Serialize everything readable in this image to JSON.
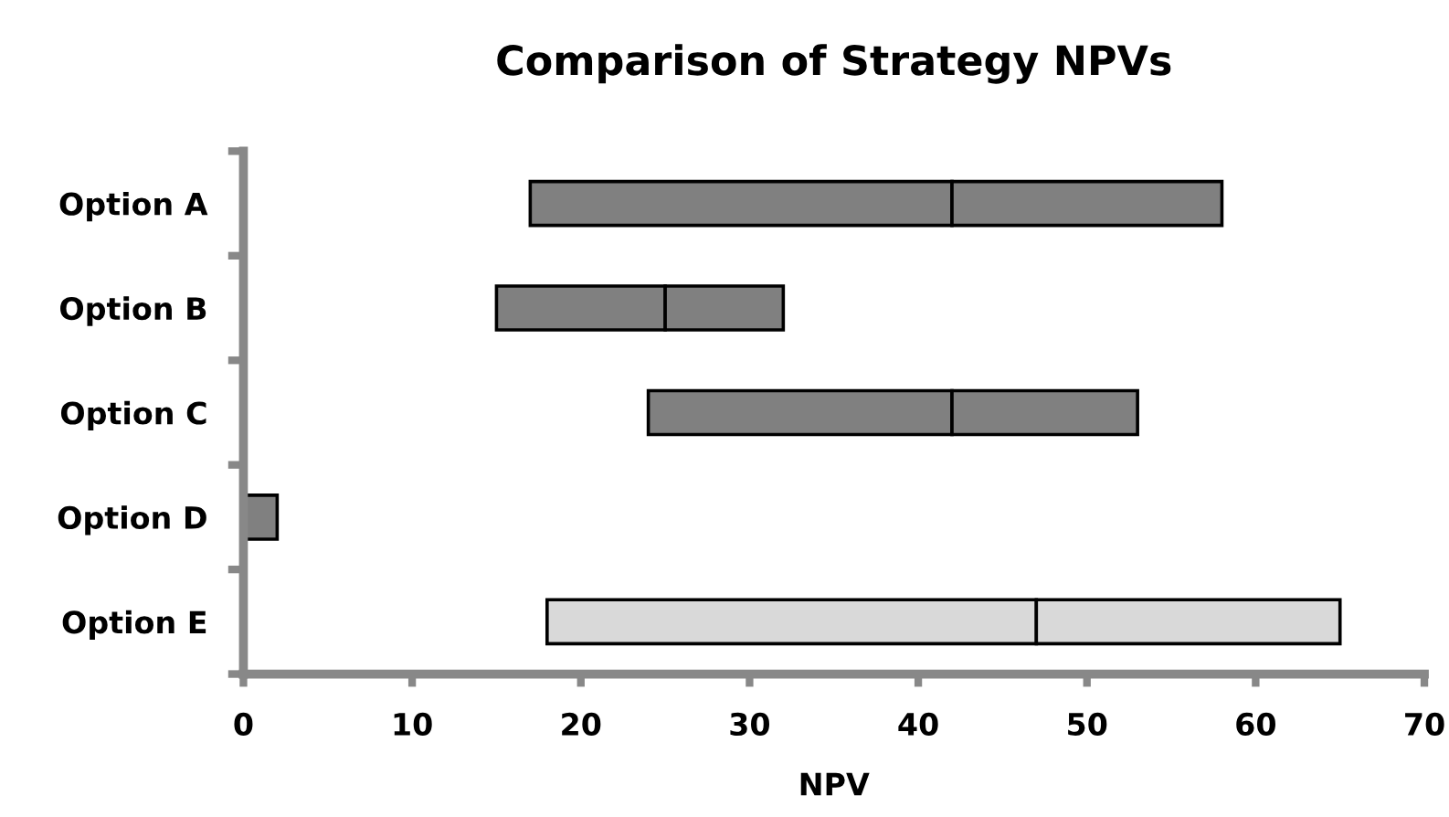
{
  "chart_data": {
    "type": "bar",
    "title": "Comparison of Strategy NPVs",
    "xlabel": "NPV",
    "orientation": "horizontal",
    "categories": [
      "Option A",
      "Option B",
      "Option C",
      "Option D",
      "Option E"
    ],
    "series": [
      {
        "colors": [
          "#808080",
          "#808080",
          "#808080",
          "#808080",
          "#d9d9d9"
        ],
        "base": [
          17,
          15,
          24,
          0,
          18
        ],
        "values": [
          25,
          10,
          18,
          2,
          29
        ]
      },
      {
        "colors": [
          "#808080",
          "#808080",
          "#808080",
          "#808080",
          "#d9d9d9"
        ],
        "base": [
          42,
          25,
          42,
          null,
          47
        ],
        "values": [
          16,
          7,
          11,
          null,
          18
        ]
      }
    ],
    "xlim": [
      0,
      70
    ],
    "xticks": [
      0,
      10,
      20,
      30,
      40,
      50,
      60,
      70
    ],
    "grid": false,
    "legend": false
  }
}
